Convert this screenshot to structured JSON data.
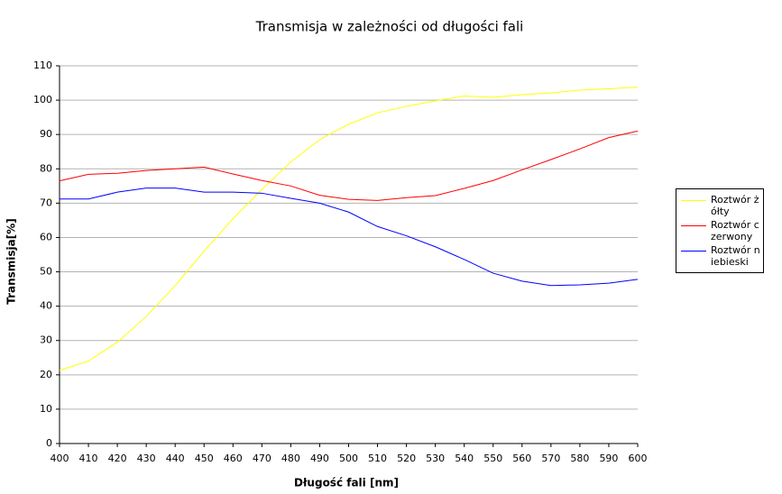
{
  "chart_data": {
    "type": "line",
    "title": "Transmisja w zależności od długości fali",
    "x_label": "Długość fali [nm]",
    "y_label": "Transmisja[%]",
    "x": [
      400,
      410,
      420,
      430,
      440,
      450,
      460,
      470,
      480,
      490,
      500,
      510,
      520,
      530,
      540,
      550,
      560,
      570,
      580,
      590,
      600
    ],
    "xlim": [
      400,
      600
    ],
    "xticks": [
      400,
      410,
      420,
      430,
      440,
      450,
      460,
      470,
      480,
      490,
      500,
      510,
      520,
      530,
      540,
      550,
      560,
      570,
      580,
      590,
      600
    ],
    "ylim": [
      0,
      110
    ],
    "yticks": [
      0,
      10,
      20,
      30,
      40,
      50,
      60,
      70,
      80,
      90,
      100,
      110
    ],
    "grid": true,
    "legend": "right",
    "series": [
      {
        "name": "Roztwór żółty",
        "color": "#ffff00",
        "values": [
          21.3,
          24,
          29.5,
          37,
          46,
          56,
          65.5,
          74,
          82,
          88.5,
          93,
          96.3,
          98.2,
          99.8,
          101.2,
          100.8,
          101.6,
          102.1,
          102.9,
          103.3,
          103.8
        ]
      },
      {
        "name": "Roztwór czerwony",
        "color": "#ff0000",
        "values": [
          76.5,
          78.4,
          78.7,
          79.5,
          80,
          80.5,
          78.5,
          76.6,
          75,
          72.3,
          71.1,
          70.8,
          71.6,
          72.2,
          74.3,
          76.6,
          79.7,
          82.7,
          85.8,
          89.1,
          91
        ]
      },
      {
        "name": "Roztwór niebieski",
        "color": "#0000ff",
        "values": [
          71.2,
          71.2,
          73.2,
          74.4,
          74.4,
          73.2,
          73.2,
          72.9,
          71.4,
          70,
          67.4,
          63.2,
          60.5,
          57.3,
          53.6,
          49.6,
          47.3,
          46,
          46.2,
          46.7,
          47.8
        ]
      }
    ]
  }
}
